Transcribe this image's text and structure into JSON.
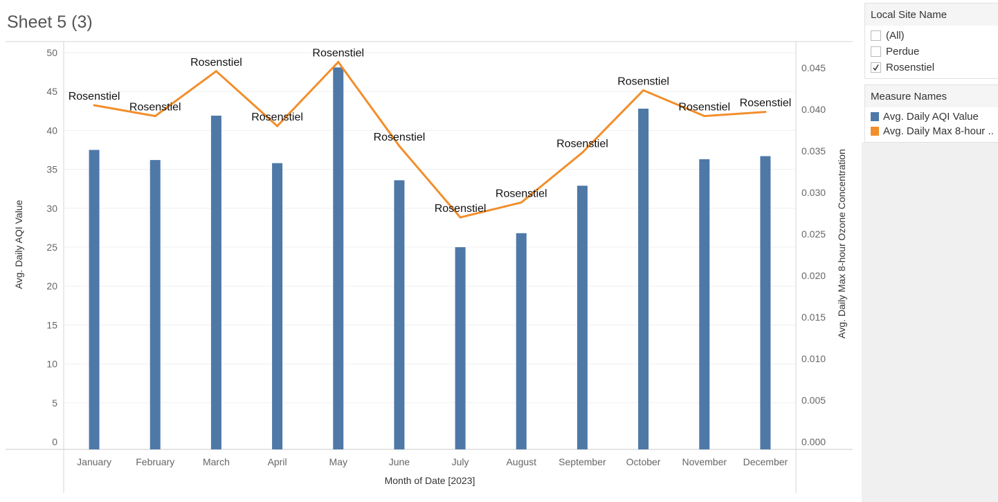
{
  "sheet": {
    "title": "Sheet 5 (3)"
  },
  "filter": {
    "title": "Local Site Name",
    "items": [
      {
        "label": "(All)",
        "checked": false
      },
      {
        "label": "Perdue",
        "checked": false
      },
      {
        "label": "Rosenstiel",
        "checked": true
      }
    ]
  },
  "legend": {
    "title": "Measure Names",
    "items": [
      {
        "label": "Avg. Daily AQI Value",
        "color": "#4e79a7"
      },
      {
        "label": "Avg. Daily Max 8-hour ..",
        "color": "#f28e2b"
      }
    ]
  },
  "chart_data": {
    "type": "bar",
    "categories": [
      "January",
      "February",
      "March",
      "April",
      "May",
      "June",
      "July",
      "August",
      "September",
      "October",
      "November",
      "December"
    ],
    "xlabel": "Month of Date [2023]",
    "series": [
      {
        "name": "Avg. Daily AQI Value",
        "type": "bar",
        "axis": "left",
        "color": "#4e79a7",
        "values": [
          37.5,
          36.2,
          41.9,
          35.8,
          48.1,
          33.6,
          25.0,
          26.8,
          32.9,
          42.8,
          36.3,
          36.7
        ]
      },
      {
        "name": "Avg. Daily Max 8-hour Ozone Concentration",
        "type": "line",
        "axis": "right",
        "color": "#f28e2b",
        "values": [
          0.0405,
          0.0392,
          0.0446,
          0.038,
          0.0457,
          0.0356,
          0.027,
          0.0288,
          0.0348,
          0.0423,
          0.0392,
          0.0397
        ]
      }
    ],
    "mark_labels": [
      "Rosenstiel",
      "Rosenstiel",
      "Rosenstiel",
      "Rosenstiel",
      "Rosenstiel",
      "Rosenstiel",
      "Rosenstiel",
      "Rosenstiel",
      "Rosenstiel",
      "Rosenstiel",
      "Rosenstiel",
      "Rosenstiel"
    ],
    "left_axis": {
      "label": "Avg. Daily AQI Value",
      "ticks": [
        0,
        5,
        10,
        15,
        20,
        25,
        30,
        35,
        40,
        45,
        50
      ],
      "tick_labels": [
        "0",
        "5",
        "10",
        "15",
        "20",
        "25",
        "30",
        "35",
        "40",
        "45",
        "50"
      ]
    },
    "right_axis": {
      "label": "Avg. Daily Max 8-hour Ozone Concentration",
      "ticks": [
        0,
        0.005,
        0.01,
        0.015,
        0.02,
        0.025,
        0.03,
        0.035,
        0.04,
        0.045
      ],
      "tick_labels": [
        "0.000",
        "0.005",
        "0.010",
        "0.015",
        "0.020",
        "0.025",
        "0.030",
        "0.035",
        "0.040",
        "0.045"
      ]
    },
    "grid": true,
    "legend_position": "right"
  }
}
